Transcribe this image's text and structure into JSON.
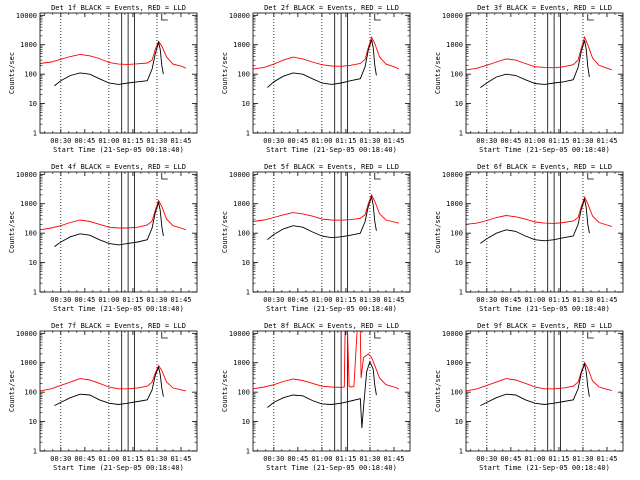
{
  "colors": {
    "events": "#000000",
    "lld": "#ff0000",
    "frame": "#000000",
    "background": "#ffffff"
  },
  "chart_data": [
    {
      "type": "line",
      "title": "Det 1f BLACK = Events, RED = LLD",
      "xlabel": "Start Time (21-Sep-05 00:18:40)",
      "ylabel": "Counts/sec",
      "log_y": true,
      "ylim": [
        1,
        12000
      ],
      "xlim_minutes": [
        17,
        115
      ],
      "x_tick_labels": [
        "00:30",
        "00:45",
        "01:00",
        "01:15",
        "01:30",
        "01:45"
      ],
      "y_tick_labels": [
        "1",
        "10",
        "100",
        "1000",
        "10000"
      ],
      "dotted_vlines_minutes": [
        30,
        60,
        90
      ],
      "solid_vlines_minutes": [
        68,
        72,
        76
      ],
      "series": [
        {
          "color": "red",
          "x_minutes": [
            17,
            24,
            30,
            36,
            42,
            48,
            54,
            60,
            66,
            72,
            78,
            84,
            87,
            89,
            91,
            93,
            96,
            100,
            105,
            108
          ],
          "y": [
            230,
            260,
            320,
            400,
            470,
            420,
            340,
            250,
            220,
            215,
            225,
            240,
            300,
            700,
            1300,
            900,
            380,
            220,
            190,
            160
          ]
        },
        {
          "color": "black",
          "x_minutes": [
            26,
            30,
            36,
            42,
            48,
            54,
            60,
            66,
            72,
            78,
            84,
            87,
            89,
            91,
            92,
            93,
            94
          ],
          "y": [
            40,
            60,
            90,
            110,
            100,
            70,
            50,
            45,
            50,
            55,
            60,
            150,
            500,
            1200,
            700,
            200,
            100
          ]
        }
      ]
    },
    {
      "type": "line",
      "title": "Det 2f BLACK = Events, RED = LLD",
      "xlabel": "Start Time (21-Sep-05 00:18:40)",
      "ylabel": "Counts/sec",
      "log_y": true,
      "ylim": [
        1,
        12000
      ],
      "xlim_minutes": [
        17,
        115
      ],
      "x_tick_labels": [
        "00:30",
        "00:45",
        "01:00",
        "01:15",
        "01:30",
        "01:45"
      ],
      "y_tick_labels": [
        "1",
        "10",
        "100",
        "1000",
        "10000"
      ],
      "dotted_vlines_minutes": [
        30,
        60,
        90
      ],
      "solid_vlines_minutes": [
        68,
        72,
        76
      ],
      "series": [
        {
          "color": "red",
          "x_minutes": [
            17,
            24,
            30,
            36,
            42,
            48,
            54,
            60,
            66,
            72,
            78,
            84,
            87,
            89,
            91,
            93,
            96,
            100,
            105,
            108
          ],
          "y": [
            150,
            170,
            220,
            300,
            380,
            330,
            260,
            210,
            190,
            185,
            200,
            230,
            320,
            800,
            1800,
            1100,
            380,
            220,
            180,
            150
          ]
        },
        {
          "color": "black",
          "x_minutes": [
            26,
            30,
            36,
            42,
            48,
            54,
            60,
            66,
            72,
            78,
            84,
            87,
            89,
            91,
            92,
            93,
            94
          ],
          "y": [
            35,
            55,
            85,
            110,
            100,
            70,
            50,
            45,
            50,
            60,
            70,
            180,
            650,
            1500,
            800,
            200,
            90
          ]
        }
      ]
    },
    {
      "type": "line",
      "title": "Det 3f BLACK = Events, RED = LLD",
      "xlabel": "Start Time (21-Sep-05 00:18:40)",
      "ylabel": "Counts/sec",
      "log_y": true,
      "ylim": [
        1,
        12000
      ],
      "xlim_minutes": [
        17,
        115
      ],
      "x_tick_labels": [
        "00:30",
        "00:45",
        "01:00",
        "01:15",
        "01:30",
        "01:45"
      ],
      "y_tick_labels": [
        "1",
        "10",
        "100",
        "1000",
        "10000"
      ],
      "dotted_vlines_minutes": [
        30,
        60,
        90
      ],
      "solid_vlines_minutes": [
        68,
        72,
        76
      ],
      "series": [
        {
          "color": "red",
          "x_minutes": [
            17,
            24,
            30,
            36,
            42,
            48,
            54,
            60,
            66,
            72,
            78,
            84,
            87,
            89,
            91,
            93,
            96,
            100,
            105,
            108
          ],
          "y": [
            140,
            160,
            200,
            260,
            330,
            300,
            230,
            180,
            170,
            165,
            180,
            210,
            300,
            750,
            1800,
            1000,
            350,
            200,
            160,
            140
          ]
        },
        {
          "color": "black",
          "x_minutes": [
            26,
            30,
            36,
            42,
            48,
            54,
            60,
            66,
            72,
            78,
            84,
            87,
            89,
            91,
            92,
            93,
            94
          ],
          "y": [
            35,
            50,
            80,
            100,
            90,
            65,
            48,
            45,
            50,
            55,
            65,
            170,
            600,
            1400,
            700,
            180,
            80
          ]
        }
      ]
    },
    {
      "type": "line",
      "title": "Det 4f BLACK = Events, RED = LLD",
      "xlabel": "Start Time (21-Sep-05 00:18:40)",
      "ylabel": "Counts/sec",
      "log_y": true,
      "ylim": [
        1,
        12000
      ],
      "xlim_minutes": [
        17,
        115
      ],
      "x_tick_labels": [
        "00:30",
        "00:45",
        "01:00",
        "01:15",
        "01:30",
        "01:45"
      ],
      "y_tick_labels": [
        "1",
        "10",
        "100",
        "1000",
        "10000"
      ],
      "dotted_vlines_minutes": [
        30,
        60,
        90
      ],
      "solid_vlines_minutes": [
        68,
        72,
        76
      ],
      "series": [
        {
          "color": "red",
          "x_minutes": [
            17,
            24,
            30,
            36,
            42,
            48,
            54,
            60,
            66,
            72,
            78,
            84,
            87,
            89,
            91,
            93,
            96,
            100,
            105,
            108
          ],
          "y": [
            130,
            150,
            180,
            230,
            280,
            250,
            200,
            160,
            150,
            150,
            160,
            190,
            260,
            600,
            1300,
            800,
            300,
            180,
            150,
            130
          ]
        },
        {
          "color": "black",
          "x_minutes": [
            26,
            30,
            36,
            42,
            48,
            54,
            60,
            66,
            72,
            78,
            84,
            87,
            89,
            91,
            92,
            93,
            94
          ],
          "y": [
            35,
            50,
            75,
            95,
            85,
            60,
            45,
            40,
            45,
            50,
            60,
            150,
            500,
            1100,
            600,
            170,
            80
          ]
        }
      ]
    },
    {
      "type": "line",
      "title": "Det 5f BLACK = Events, RED = LLD",
      "xlabel": "Start Time (21-Sep-05 00:18:40)",
      "ylabel": "Counts/sec",
      "log_y": true,
      "ylim": [
        1,
        12000
      ],
      "xlim_minutes": [
        17,
        115
      ],
      "x_tick_labels": [
        "00:30",
        "00:45",
        "01:00",
        "01:15",
        "01:30",
        "01:45"
      ],
      "y_tick_labels": [
        "1",
        "10",
        "100",
        "1000",
        "10000"
      ],
      "dotted_vlines_minutes": [
        30,
        60,
        90
      ],
      "solid_vlines_minutes": [
        68,
        72,
        76
      ],
      "series": [
        {
          "color": "red",
          "x_minutes": [
            17,
            24,
            30,
            36,
            42,
            48,
            54,
            60,
            66,
            72,
            78,
            84,
            87,
            89,
            91,
            93,
            96,
            100,
            105,
            108
          ],
          "y": [
            250,
            280,
            340,
            420,
            500,
            450,
            380,
            300,
            280,
            275,
            290,
            320,
            420,
            1000,
            2000,
            1200,
            450,
            280,
            240,
            220
          ]
        },
        {
          "color": "black",
          "x_minutes": [
            26,
            30,
            36,
            42,
            48,
            54,
            60,
            66,
            72,
            78,
            84,
            87,
            89,
            91,
            92,
            93,
            94
          ],
          "y": [
            60,
            90,
            140,
            180,
            160,
            110,
            80,
            70,
            75,
            85,
            100,
            250,
            800,
            1700,
            900,
            250,
            120
          ]
        }
      ]
    },
    {
      "type": "line",
      "title": "Det 6f BLACK = Events, RED = LLD",
      "xlabel": "Start Time (21-Sep-05 00:18:40)",
      "ylabel": "Counts/sec",
      "log_y": true,
      "ylim": [
        1,
        12000
      ],
      "xlim_minutes": [
        17,
        115
      ],
      "x_tick_labels": [
        "00:30",
        "00:45",
        "01:00",
        "01:15",
        "01:30",
        "01:45"
      ],
      "y_tick_labels": [
        "1",
        "10",
        "100",
        "1000",
        "10000"
      ],
      "dotted_vlines_minutes": [
        30,
        60,
        90
      ],
      "solid_vlines_minutes": [
        68,
        72,
        76
      ],
      "series": [
        {
          "color": "red",
          "x_minutes": [
            17,
            24,
            30,
            36,
            42,
            48,
            54,
            60,
            66,
            72,
            78,
            84,
            87,
            89,
            91,
            93,
            96,
            100,
            105,
            108
          ],
          "y": [
            200,
            220,
            270,
            340,
            400,
            360,
            300,
            240,
            220,
            215,
            230,
            260,
            340,
            800,
            1700,
            1000,
            380,
            230,
            190,
            170
          ]
        },
        {
          "color": "black",
          "x_minutes": [
            26,
            30,
            36,
            42,
            48,
            54,
            60,
            66,
            72,
            78,
            84,
            87,
            89,
            91,
            92,
            93,
            94
          ],
          "y": [
            45,
            65,
            100,
            130,
            115,
            80,
            60,
            55,
            60,
            70,
            80,
            200,
            650,
            1400,
            750,
            200,
            100
          ]
        }
      ]
    },
    {
      "type": "line",
      "title": "Det 7f BLACK = Events, RED = LLD",
      "xlabel": "Start Time (21-Sep-05 00:18:40)",
      "ylabel": "Counts/sec",
      "log_y": true,
      "ylim": [
        1,
        12000
      ],
      "xlim_minutes": [
        17,
        115
      ],
      "x_tick_labels": [
        "00:30",
        "00:45",
        "01:00",
        "01:15",
        "01:30",
        "01:45"
      ],
      "y_tick_labels": [
        "1",
        "10",
        "100",
        "1000",
        "10000"
      ],
      "dotted_vlines_minutes": [
        30,
        60,
        90
      ],
      "solid_vlines_minutes": [
        68,
        72,
        76
      ],
      "series": [
        {
          "color": "red",
          "x_minutes": [
            17,
            24,
            30,
            36,
            42,
            48,
            54,
            60,
            66,
            72,
            78,
            84,
            87,
            89,
            91,
            93,
            96,
            100,
            105,
            108
          ],
          "y": [
            110,
            130,
            170,
            220,
            290,
            260,
            200,
            150,
            130,
            130,
            140,
            160,
            220,
            450,
            800,
            550,
            220,
            140,
            120,
            110
          ]
        },
        {
          "color": "black",
          "x_minutes": [
            26,
            30,
            36,
            42,
            48,
            54,
            60,
            66,
            72,
            78,
            84,
            87,
            89,
            91,
            92,
            93,
            94
          ],
          "y": [
            35,
            45,
            65,
            85,
            80,
            55,
            42,
            38,
            42,
            48,
            55,
            120,
            380,
            700,
            400,
            140,
            70
          ]
        }
      ]
    },
    {
      "type": "line",
      "title": "Det 8f BLACK = Events, RED = LLD",
      "xlabel": "Start Time (21-Sep-05 00:18:40)",
      "ylabel": "Counts/sec",
      "log_y": true,
      "ylim": [
        1,
        12000
      ],
      "xlim_minutes": [
        17,
        115
      ],
      "x_tick_labels": [
        "00:30",
        "00:45",
        "01:00",
        "01:15",
        "01:30",
        "01:45"
      ],
      "y_tick_labels": [
        "1",
        "10",
        "100",
        "1000",
        "10000"
      ],
      "dotted_vlines_minutes": [
        30,
        60,
        90
      ],
      "solid_vlines_minutes": [
        68,
        72,
        76
      ],
      "series": [
        {
          "color": "red",
          "x_minutes": [
            17,
            24,
            30,
            36,
            42,
            48,
            54,
            60,
            66,
            72,
            74,
            74.5,
            76,
            77,
            78,
            80,
            82,
            84,
            84.5,
            86,
            89,
            91,
            93,
            96,
            100,
            105,
            108
          ],
          "y": [
            130,
            150,
            180,
            230,
            280,
            250,
            200,
            160,
            150,
            145,
            150,
            12000,
            12000,
            160,
            150,
            155,
            12000,
            12000,
            300,
            1500,
            2000,
            1500,
            800,
            300,
            180,
            150,
            130
          ]
        },
        {
          "color": "black",
          "x_minutes": [
            26,
            30,
            36,
            42,
            48,
            54,
            60,
            66,
            72,
            78,
            84,
            85,
            86,
            88,
            90,
            92,
            93,
            94
          ],
          "y": [
            30,
            45,
            65,
            80,
            75,
            52,
            40,
            38,
            42,
            50,
            60,
            6,
            30,
            500,
            1100,
            600,
            170,
            80
          ]
        }
      ]
    },
    {
      "type": "line",
      "title": "Det 9f BLACK = Events, RED = LLD",
      "xlabel": "Start Time (21-Sep-05 00:18:40)",
      "ylabel": "Counts/sec",
      "log_y": true,
      "ylim": [
        1,
        12000
      ],
      "xlim_minutes": [
        17,
        115
      ],
      "x_tick_labels": [
        "00:30",
        "00:45",
        "01:00",
        "01:15",
        "01:30",
        "01:45"
      ],
      "y_tick_labels": [
        "1",
        "10",
        "100",
        "1000",
        "10000"
      ],
      "dotted_vlines_minutes": [
        30,
        60,
        90
      ],
      "solid_vlines_minutes": [
        68,
        72,
        76
      ],
      "series": [
        {
          "color": "red",
          "x_minutes": [
            17,
            24,
            30,
            36,
            42,
            48,
            54,
            60,
            66,
            72,
            78,
            84,
            87,
            89,
            91,
            93,
            96,
            100,
            105,
            108
          ],
          "y": [
            110,
            130,
            170,
            220,
            290,
            260,
            200,
            150,
            130,
            130,
            140,
            160,
            220,
            500,
            1000,
            650,
            240,
            150,
            125,
            115
          ]
        },
        {
          "color": "black",
          "x_minutes": [
            26,
            30,
            36,
            42,
            48,
            54,
            60,
            66,
            72,
            78,
            84,
            87,
            89,
            91,
            92,
            93,
            94
          ],
          "y": [
            35,
            45,
            65,
            85,
            80,
            55,
            42,
            38,
            42,
            48,
            55,
            130,
            450,
            900,
            500,
            150,
            70
          ]
        }
      ]
    }
  ]
}
